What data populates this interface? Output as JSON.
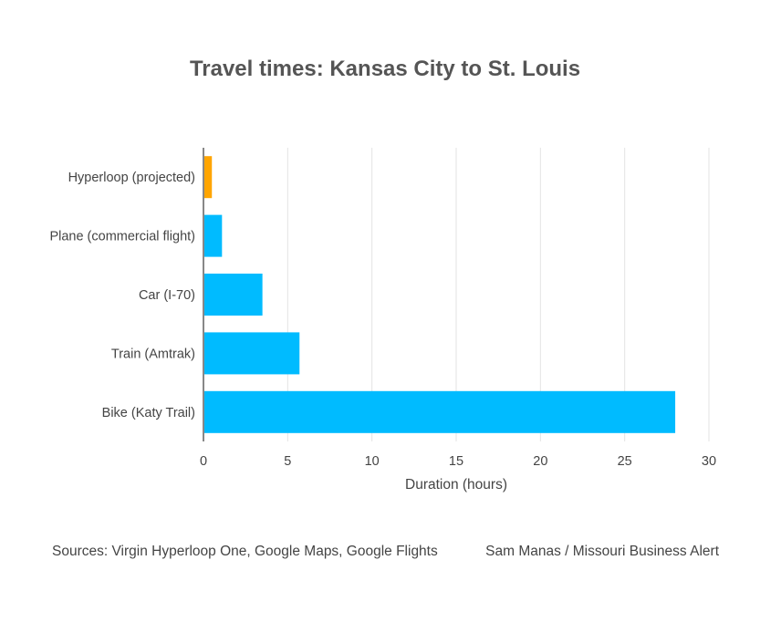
{
  "chart_data": {
    "type": "bar",
    "orientation": "horizontal",
    "title": "Travel times: Kansas City to St. Louis",
    "xlabel": "Duration (hours)",
    "ylabel": "",
    "xlim": [
      0,
      30
    ],
    "xticks": [
      0,
      5,
      10,
      15,
      20,
      25,
      30
    ],
    "grid": true,
    "categories": [
      "Hyperloop (projected)",
      "Plane (commercial flight)",
      "Car (I-70)",
      "Train (Amtrak)",
      "Bike (Katy Trail)"
    ],
    "values": [
      0.5,
      1.1,
      3.5,
      5.7,
      28
    ],
    "colors": [
      "#FFA500",
      "#00BBFF",
      "#00BBFF",
      "#00BBFF",
      "#00BBFF"
    ]
  },
  "footer": {
    "sources": "Sources: Virgin Hyperloop One, Google Maps, Google Flights",
    "credit": "Sam Manas / Missouri Business Alert"
  }
}
